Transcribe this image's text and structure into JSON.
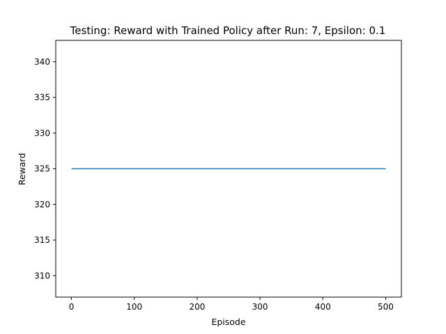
{
  "chart_data": {
    "type": "line",
    "title": "Testing: Reward with Trained Policy after Run: 7, Epsilon: 0.1",
    "xlabel": "Episode",
    "ylabel": "Reward",
    "xlim": [
      -25,
      525
    ],
    "ylim": [
      307,
      343
    ],
    "x_ticks": [
      0,
      100,
      200,
      300,
      400,
      500
    ],
    "y_ticks": [
      310,
      315,
      320,
      325,
      330,
      335,
      340
    ],
    "grid": false,
    "series": [
      {
        "color": "#1f77b4",
        "x": [
          0,
          500
        ],
        "y": [
          325,
          325
        ]
      }
    ]
  }
}
